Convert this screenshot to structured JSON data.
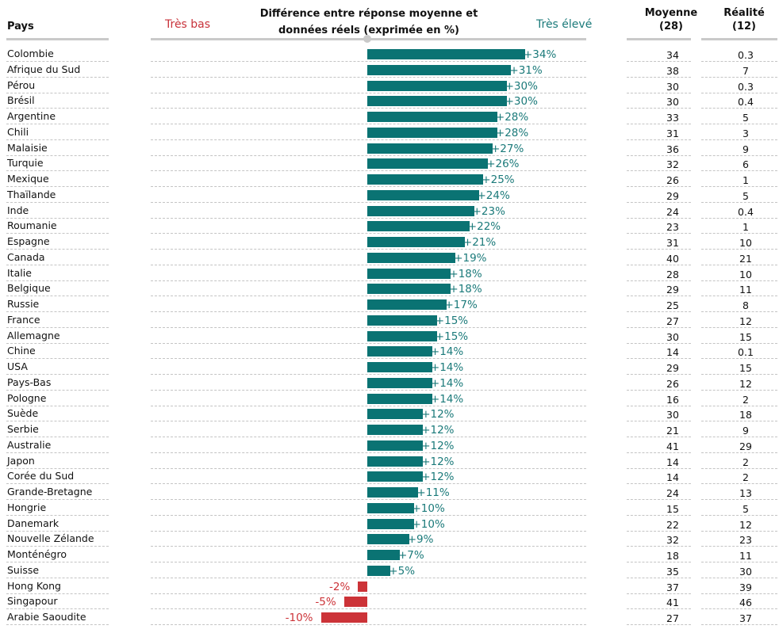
{
  "header": {
    "country_label": "Pays",
    "chart_title_line1": "Différence entre réponse moyenne et",
    "chart_title_line2": "données réels (exprimée en %)",
    "low_label": "Très bas",
    "high_label": "Très élevé",
    "average_label": "Moyenne",
    "average_sub": "(28)",
    "reality_label": "Réalité",
    "reality_sub": "(12)"
  },
  "colors": {
    "positive": "#0a7373",
    "negative": "#cc3338"
  },
  "chart_data": {
    "type": "bar",
    "orientation": "horizontal",
    "title": "Différence entre réponse moyenne et données réels (exprimée en %)",
    "xlim": [
      -34,
      34
    ],
    "categories": [
      "Colombie",
      "Afrique du Sud",
      "Pérou",
      "Brésil",
      "Argentine",
      "Chili",
      "Malaisie",
      "Turquie",
      "Mexique",
      "Thaïlande",
      "Inde",
      "Roumanie",
      "Espagne",
      "Canada",
      "Italie",
      "Belgique",
      "Russie",
      "France",
      "Allemagne",
      "Chine",
      "USA",
      "Pays-Bas",
      "Pologne",
      "Suède",
      "Serbie",
      "Australie",
      "Japon",
      "Corée du Sud",
      "Grande-Bretagne",
      "Hongrie",
      "Danemark",
      "Nouvelle Zélande",
      "Monténégro",
      "Suisse",
      "Hong Kong",
      "Singapour",
      "Arabie Saoudite"
    ],
    "values": [
      34,
      31,
      30,
      30,
      28,
      28,
      27,
      26,
      25,
      24,
      23,
      22,
      21,
      19,
      18,
      18,
      17,
      15,
      15,
      14,
      14,
      14,
      14,
      12,
      12,
      12,
      12,
      12,
      11,
      10,
      10,
      9,
      7,
      5,
      -2,
      -5,
      -10
    ],
    "labels": [
      "+34%",
      "+31%",
      "+30%",
      "+30%",
      "+28%",
      "+28%",
      "+27%",
      "+26%",
      "+25%",
      "+24%",
      "+23%",
      "+22%",
      "+21%",
      "+19%",
      "+18%",
      "+18%",
      "+17%",
      "+15%",
      "+15%",
      "+14%",
      "+14%",
      "+14%",
      "+14%",
      "+12%",
      "+12%",
      "+12%",
      "+12%",
      "+12%",
      "+11%",
      "+10%",
      "+10%",
      "+9%",
      "+7%",
      "+5%",
      "-2%",
      "-5%",
      "-10%"
    ],
    "moyenne": [
      "34",
      "38",
      "30",
      "30",
      "33",
      "31",
      "36",
      "32",
      "26",
      "29",
      "24",
      "23",
      "31",
      "40",
      "28",
      "29",
      "25",
      "27",
      "30",
      "14",
      "29",
      "26",
      "16",
      "30",
      "21",
      "41",
      "14",
      "14",
      "24",
      "15",
      "22",
      "32",
      "18",
      "35",
      "37",
      "41",
      "27"
    ],
    "realite": [
      "0.3",
      "7",
      "0.3",
      "0.4",
      "5",
      "3",
      "9",
      "6",
      "1",
      "5",
      "0.4",
      "1",
      "10",
      "21",
      "10",
      "11",
      "8",
      "12",
      "15",
      "0.1",
      "15",
      "12",
      "2",
      "18",
      "9",
      "29",
      "2",
      "2",
      "13",
      "5",
      "12",
      "23",
      "11",
      "30",
      "39",
      "46",
      "37"
    ]
  }
}
